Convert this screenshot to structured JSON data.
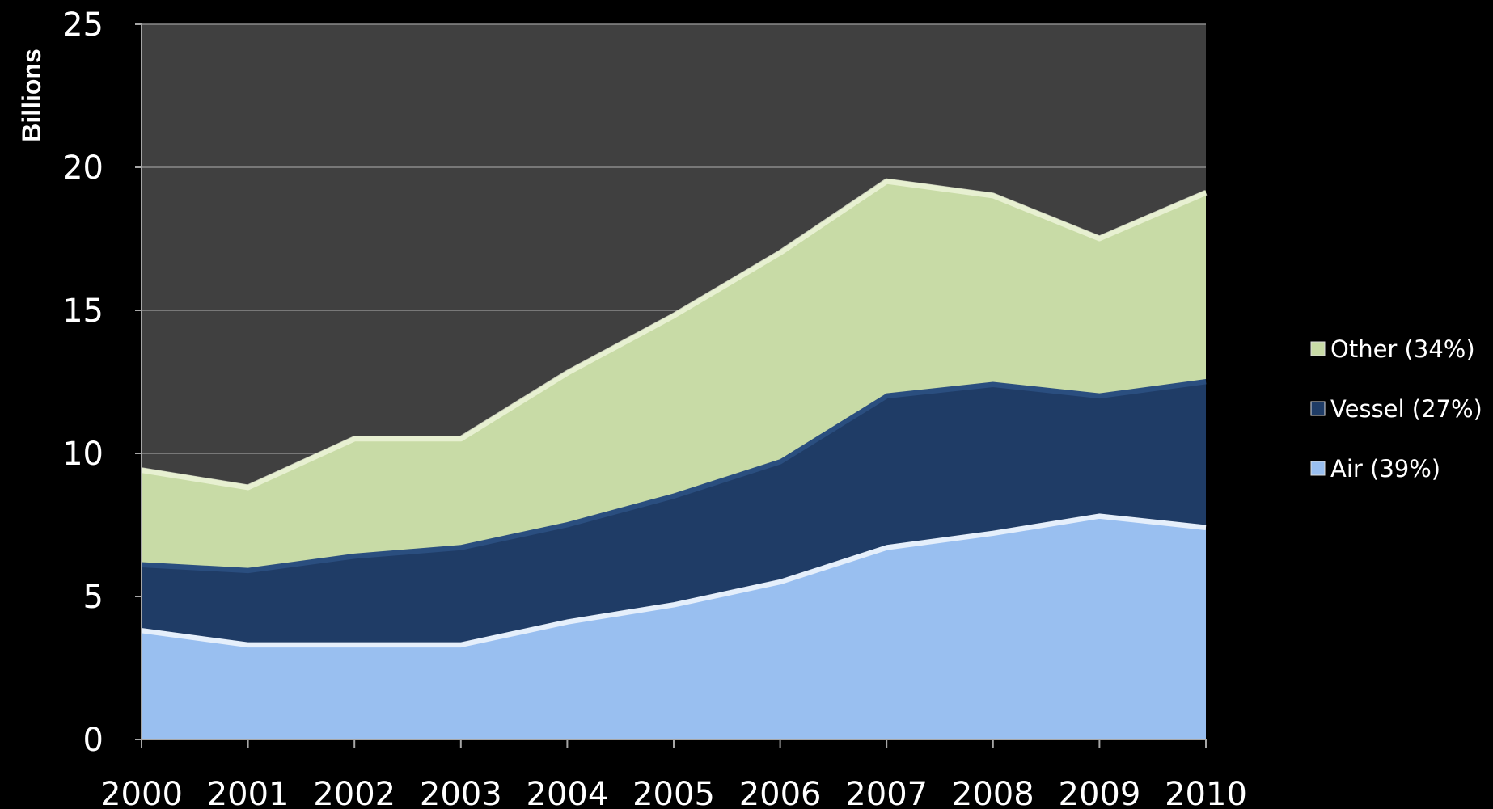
{
  "chart_data": {
    "type": "area",
    "stacked": true,
    "title": "",
    "xlabel": "",
    "ylabel": "Billions",
    "ylim": [
      0,
      25
    ],
    "yticks": [
      "0",
      "5",
      "10",
      "15",
      "20",
      "25"
    ],
    "categories": [
      "2000",
      "2001",
      "2002",
      "2003",
      "2004",
      "2005",
      "2006",
      "2007",
      "2008",
      "2009",
      "2010"
    ],
    "series": [
      {
        "name": "Air (39%)",
        "color": "#99bff0",
        "values": [
          3.9,
          3.4,
          3.4,
          3.4,
          4.2,
          4.8,
          5.6,
          6.8,
          7.3,
          7.9,
          7.5
        ]
      },
      {
        "name": "Vessel (27%)",
        "color": "#1f3c66",
        "values": [
          2.3,
          2.6,
          3.1,
          3.4,
          3.4,
          3.8,
          4.2,
          5.3,
          5.2,
          4.2,
          5.1
        ]
      },
      {
        "name": "Other (34%)",
        "color": "#c8dba6",
        "values": [
          3.3,
          2.9,
          4.1,
          3.8,
          5.3,
          6.3,
          7.3,
          7.5,
          6.6,
          5.5,
          6.6
        ]
      }
    ],
    "legend_position": "right",
    "plot_background": "#404040",
    "grid": true
  }
}
